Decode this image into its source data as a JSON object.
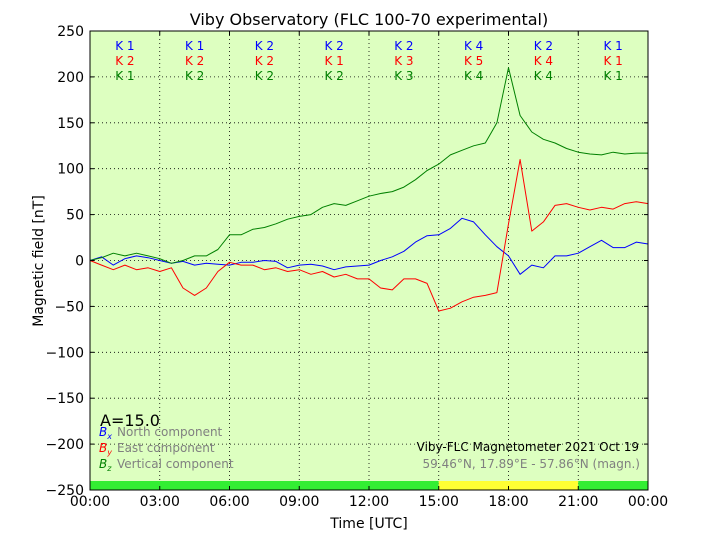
{
  "chart_data": {
    "type": "line",
    "title": "Viby Observatory (FLC 100-70 experimental)",
    "xlabel": "Time [UTC]",
    "ylabel": "Magnetic field [nT]",
    "x_ticks": [
      "00:00",
      "03:00",
      "06:00",
      "09:00",
      "12:00",
      "15:00",
      "18:00",
      "21:00",
      "00:00"
    ],
    "y_ticks": [
      250,
      200,
      150,
      100,
      50,
      0,
      -50,
      -100,
      -150,
      -200,
      -250
    ],
    "xlim": [
      0,
      24
    ],
    "ylim": [
      -250,
      250
    ],
    "grid": true,
    "colors": {
      "background": "#ddffc0",
      "north": "#0000ff",
      "east": "#ff0000",
      "vertical": "#008000",
      "legend_text": "#808080"
    },
    "series": [
      {
        "name": "North component",
        "color": "#0000ff",
        "x": [
          0,
          0.5,
          1,
          1.5,
          2,
          2.5,
          3,
          3.5,
          4,
          4.5,
          5,
          5.5,
          6,
          6.5,
          7,
          7.5,
          8,
          8.5,
          9,
          9.5,
          10,
          10.5,
          11,
          11.5,
          12,
          12.5,
          13,
          13.5,
          14,
          14.5,
          15,
          15.5,
          16,
          16.5,
          17,
          17.5,
          18,
          18.5,
          19,
          19.5,
          20,
          20.5,
          21,
          21.5,
          22,
          22.5,
          23,
          23.5,
          24
        ],
        "values": [
          0,
          4,
          -5,
          2,
          5,
          3,
          0,
          -3,
          -1,
          -5,
          -3,
          -4,
          -5,
          -2,
          -2,
          0,
          -1,
          -8,
          -5,
          -4,
          -6,
          -10,
          -7,
          -6,
          -5,
          0,
          4,
          10,
          20,
          27,
          28,
          35,
          46,
          42,
          28,
          15,
          5,
          -15,
          -5,
          -8,
          5,
          5,
          8,
          15,
          22,
          14,
          14,
          20,
          18
        ]
      },
      {
        "name": "East component",
        "color": "#ff0000",
        "x": [
          0,
          0.5,
          1,
          1.5,
          2,
          2.5,
          3,
          3.5,
          4,
          4.5,
          5,
          5.5,
          6,
          6.5,
          7,
          7.5,
          8,
          8.5,
          9,
          9.5,
          10,
          10.5,
          11,
          11.5,
          12,
          12.5,
          13,
          13.5,
          14,
          14.5,
          15,
          15.5,
          16,
          16.5,
          17,
          17.5,
          18,
          18.5,
          19,
          19.5,
          20,
          20.5,
          21,
          21.5,
          22,
          22.5,
          23,
          23.5,
          24
        ],
        "values": [
          0,
          -5,
          -10,
          -5,
          -10,
          -8,
          -12,
          -8,
          -30,
          -38,
          -30,
          -12,
          -2,
          -5,
          -5,
          -10,
          -8,
          -12,
          -10,
          -15,
          -12,
          -18,
          -15,
          -20,
          -20,
          -30,
          -32,
          -20,
          -20,
          -25,
          -55,
          -52,
          -45,
          -40,
          -38,
          -35,
          40,
          110,
          32,
          42,
          60,
          62,
          58,
          55,
          58,
          56,
          62,
          64,
          62
        ]
      },
      {
        "name": "Vertical component",
        "color": "#008000",
        "x": [
          0,
          0.5,
          1,
          1.5,
          2,
          2.5,
          3,
          3.5,
          4,
          4.5,
          5,
          5.5,
          6,
          6.5,
          7,
          7.5,
          8,
          8.5,
          9,
          9.5,
          10,
          10.5,
          11,
          11.5,
          12,
          12.5,
          13,
          13.5,
          14,
          14.5,
          15,
          15.5,
          16,
          16.5,
          17,
          17.5,
          18,
          18.5,
          19,
          19.5,
          20,
          20.5,
          21,
          21.5,
          22,
          22.5,
          23,
          23.5,
          24
        ],
        "values": [
          0,
          3,
          8,
          5,
          8,
          5,
          2,
          -3,
          0,
          5,
          5,
          12,
          28,
          28,
          34,
          36,
          40,
          45,
          48,
          50,
          58,
          62,
          60,
          65,
          70,
          73,
          75,
          80,
          88,
          98,
          105,
          115,
          120,
          125,
          128,
          150,
          210,
          158,
          140,
          132,
          128,
          122,
          118,
          116,
          115,
          118,
          116,
          117,
          117
        ]
      }
    ],
    "k_indices": {
      "north": [
        "K 1",
        "K 1",
        "K 2",
        "K 2",
        "K 2",
        "K 4",
        "K 2",
        "K 1"
      ],
      "east": [
        "K 2",
        "K 2",
        "K 2",
        "K 1",
        "K 3",
        "K 5",
        "K 4",
        "K 1"
      ],
      "vertical": [
        "K 1",
        "K 2",
        "K 2",
        "K 2",
        "K 3",
        "K 4",
        "K 4",
        "K 1"
      ]
    },
    "activity_bar": {
      "segments": [
        {
          "start": 0,
          "end": 15,
          "color": "#33ee33"
        },
        {
          "start": 15,
          "end": 21,
          "color": "#ffff33"
        },
        {
          "start": 21,
          "end": 24,
          "color": "#33ee33"
        }
      ]
    },
    "a_index": "A=15.0",
    "legend": {
      "placement": "bottom-left",
      "entries": [
        {
          "symbol": "B",
          "sub": "x",
          "label": "North component",
          "color": "#0000ff"
        },
        {
          "symbol": "B",
          "sub": "y",
          "label": "East component",
          "color": "#ff0000"
        },
        {
          "symbol": "B",
          "sub": "z",
          "label": "Vertical component",
          "color": "#008000"
        }
      ]
    },
    "info": {
      "line1": "Viby-FLC Magnetometer 2021 Oct 19",
      "line2": "59.46°N, 17.89°E - 57.86°N (magn.)"
    }
  }
}
